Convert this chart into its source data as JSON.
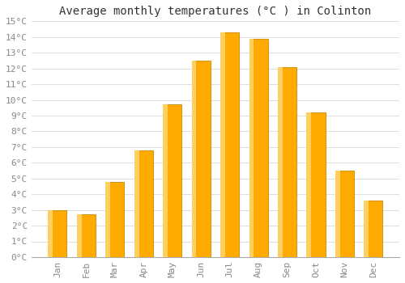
{
  "title": "Average monthly temperatures (°C ) in Colinton",
  "months": [
    "Jan",
    "Feb",
    "Mar",
    "Apr",
    "May",
    "Jun",
    "Jul",
    "Aug",
    "Sep",
    "Oct",
    "Nov",
    "Dec"
  ],
  "values": [
    3.0,
    2.7,
    4.8,
    6.8,
    9.7,
    12.5,
    14.3,
    13.9,
    12.1,
    9.2,
    5.5,
    3.6
  ],
  "bar_color": "#FFAA00",
  "bar_edge_color": "#CC8800",
  "bar_highlight_color": "#FFD060",
  "ylim": [
    0,
    15
  ],
  "yticks": [
    0,
    1,
    2,
    3,
    4,
    5,
    6,
    7,
    8,
    9,
    10,
    11,
    12,
    13,
    14,
    15
  ],
  "ytick_labels": [
    "0°C",
    "1°C",
    "2°C",
    "3°C",
    "4°C",
    "5°C",
    "6°C",
    "7°C",
    "8°C",
    "9°C",
    "10°C",
    "11°C",
    "12°C",
    "13°C",
    "14°C",
    "15°C"
  ],
  "background_color": "#FFFFFF",
  "plot_bg_color": "#FFFFFF",
  "grid_color": "#DDDDDD",
  "title_fontsize": 10,
  "tick_fontsize": 8,
  "font_family": "monospace",
  "tick_color": "#888888",
  "bar_width": 0.65
}
